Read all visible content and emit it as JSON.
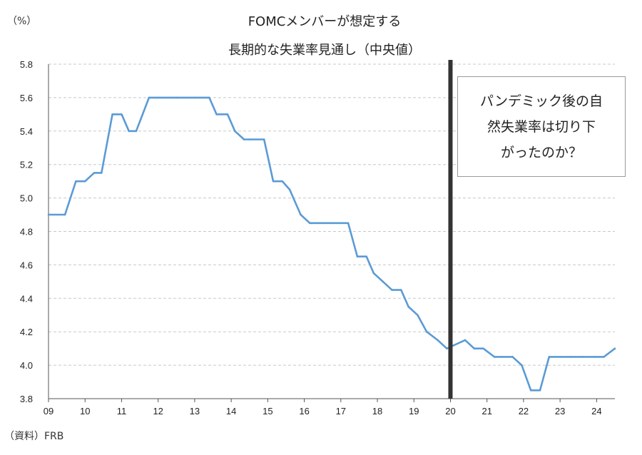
{
  "chart_data": {
    "type": "line",
    "title_lines": [
      "FOMCメンバーが想定する",
      "長期的な失業率見通し（中央値）"
    ],
    "unit": "（%）",
    "source": "（資料）FRB",
    "x_tick_labels": [
      "09",
      "10",
      "11",
      "12",
      "13",
      "14",
      "15",
      "16",
      "17",
      "18",
      "19",
      "20",
      "21",
      "22",
      "23",
      "24"
    ],
    "y_tick_labels": [
      "3.8",
      "4.0",
      "4.2",
      "4.4",
      "4.6",
      "4.8",
      "5.0",
      "5.2",
      "5.4",
      "5.6",
      "5.8"
    ],
    "ylim": [
      3.8,
      5.8
    ],
    "xlim": [
      2009,
      2024.5
    ],
    "grid": true,
    "vline_x": 2020,
    "annotation_lines": [
      "パンデミック後の自",
      "然失業率は切り下",
      "がったのか？"
    ],
    "series": [
      {
        "color": "#5b9bd5",
        "x": [
          2009.0,
          2009.45,
          2009.75,
          2010.0,
          2010.25,
          2010.45,
          2010.75,
          2011.0,
          2011.2,
          2011.4,
          2011.75,
          2012.0,
          2012.5,
          2013.0,
          2013.4,
          2013.6,
          2013.9,
          2014.1,
          2014.35,
          2014.5,
          2014.9,
          2015.15,
          2015.4,
          2015.6,
          2015.9,
          2016.15,
          2016.4,
          2016.7,
          2017.2,
          2017.45,
          2017.7,
          2017.9,
          2018.15,
          2018.4,
          2018.65,
          2018.85,
          2019.1,
          2019.35,
          2019.65,
          2019.9,
          2020.1,
          2020.4,
          2020.65,
          2020.9,
          2021.2,
          2021.4,
          2021.7,
          2021.95,
          2022.2,
          2022.45,
          2022.7,
          2023.0,
          2023.3,
          2023.6,
          2023.95,
          2024.2,
          2024.5
        ],
        "y": [
          4.9,
          4.9,
          5.1,
          5.1,
          5.15,
          5.15,
          5.5,
          5.5,
          5.4,
          5.4,
          5.6,
          5.6,
          5.6,
          5.6,
          5.6,
          5.5,
          5.5,
          5.4,
          5.35,
          5.35,
          5.35,
          5.1,
          5.1,
          5.05,
          4.9,
          4.85,
          4.85,
          4.85,
          4.85,
          4.65,
          4.65,
          4.55,
          4.5,
          4.45,
          4.45,
          4.35,
          4.3,
          4.2,
          4.15,
          4.1,
          4.12,
          4.15,
          4.1,
          4.1,
          4.05,
          4.05,
          4.05,
          4.0,
          3.85,
          3.85,
          4.05,
          4.05,
          4.05,
          4.05,
          4.05,
          4.05,
          4.1
        ]
      }
    ]
  }
}
